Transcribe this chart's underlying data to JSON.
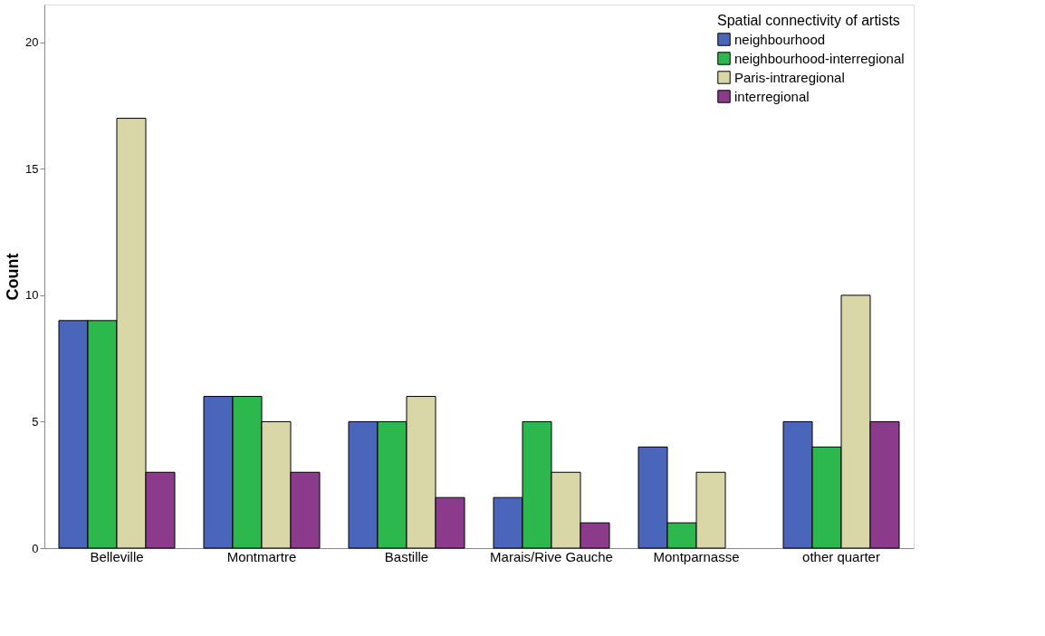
{
  "chart_data": {
    "type": "bar",
    "ylabel": "Count",
    "legend_title": "Spatial connectivity of artists",
    "categories": [
      "Belleville",
      "Montmartre",
      "Bastille",
      "Marais/Rive Gauche",
      "Montparnasse",
      "other quarter"
    ],
    "series": [
      {
        "name": "neighbourhood",
        "color": "#4a66ba",
        "values": [
          9,
          6,
          5,
          2,
          4,
          5
        ]
      },
      {
        "name": "neighbourhood-interregional",
        "color": "#2db84d",
        "values": [
          9,
          6,
          5,
          5,
          1,
          4
        ]
      },
      {
        "name": "Paris-intraregional",
        "color": "#d9d6a8",
        "values": [
          17,
          5,
          6,
          3,
          3,
          10
        ]
      },
      {
        "name": "interregional",
        "color": "#8b3a8c",
        "values": [
          3,
          3,
          2,
          1,
          null,
          5
        ]
      }
    ],
    "ylim": [
      0,
      21.5
    ],
    "yticks": [
      0,
      5,
      10,
      15,
      20
    ],
    "grid": false,
    "legend": "top right"
  }
}
